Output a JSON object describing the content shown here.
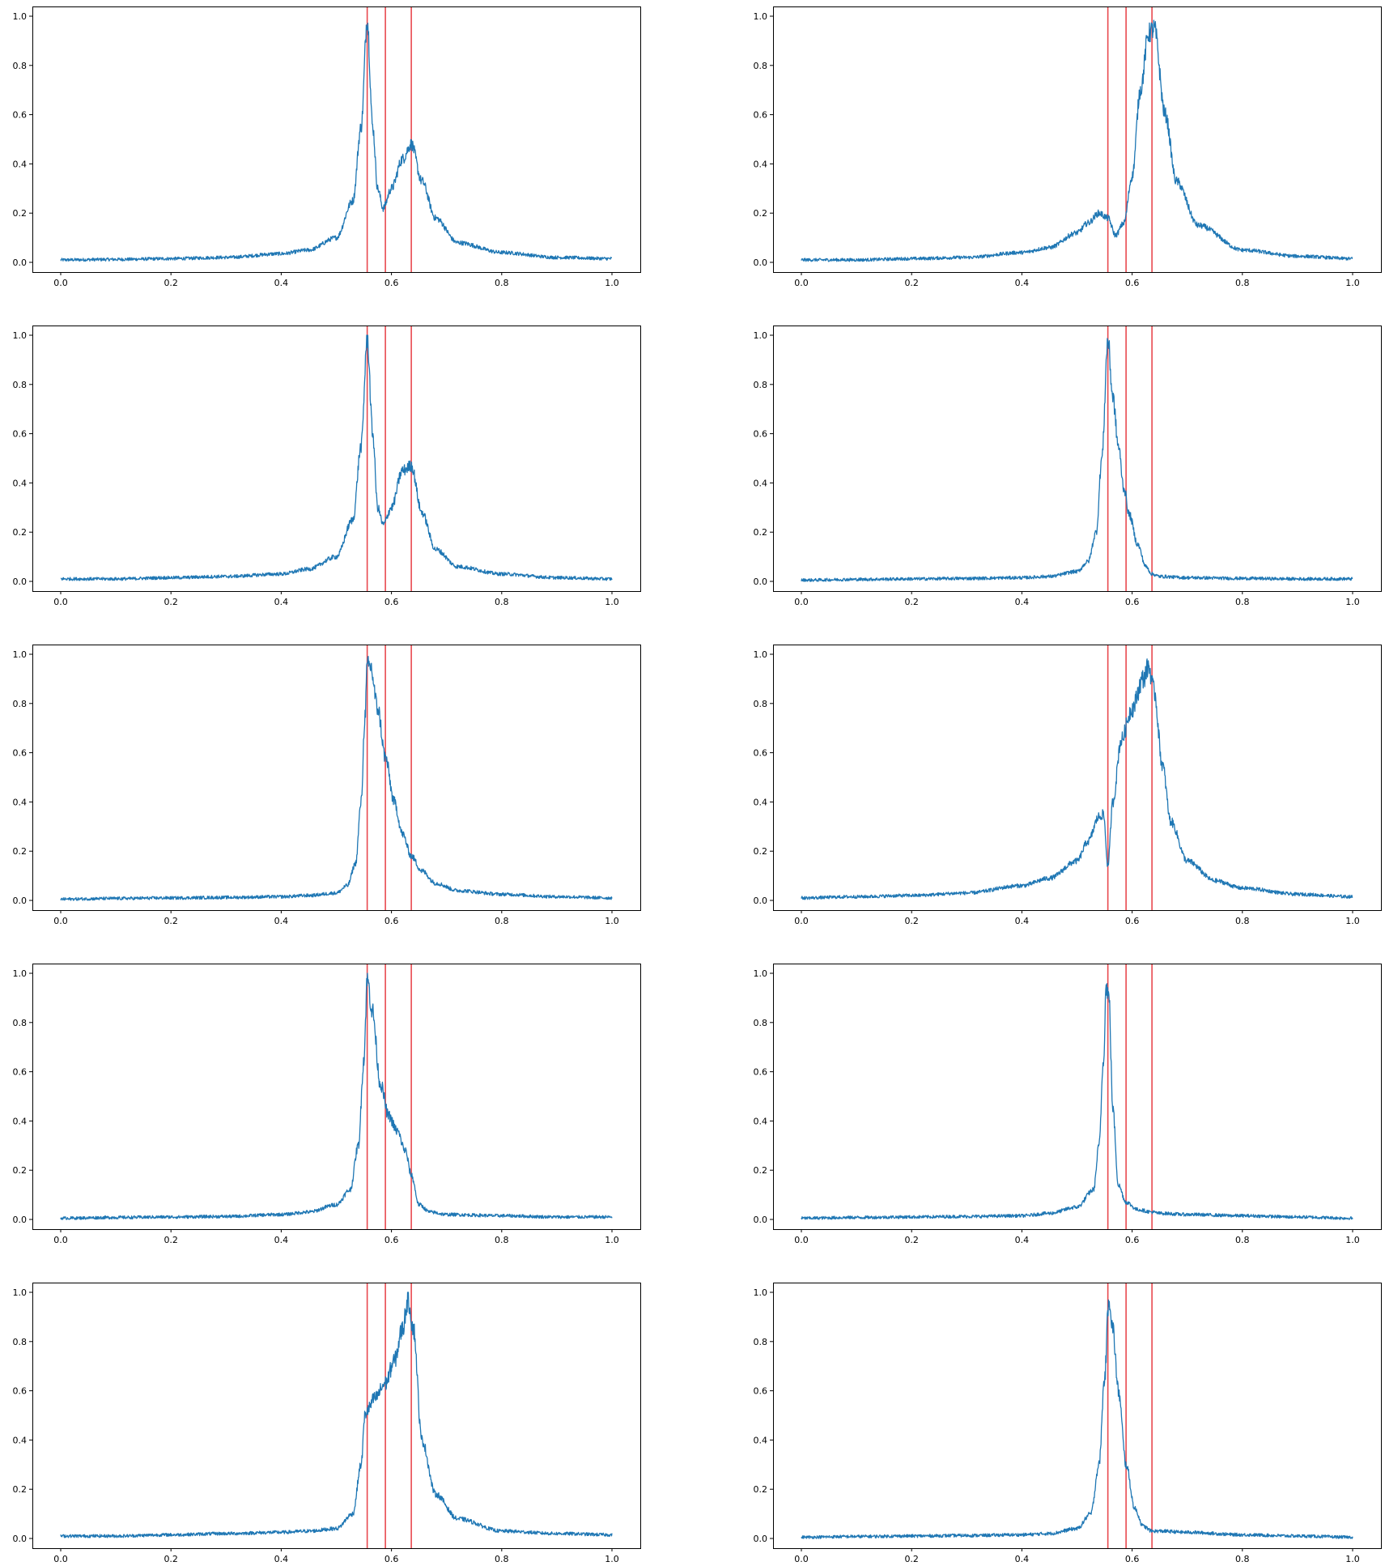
{
  "chart_data": [
    {
      "type": "line",
      "xlim": [
        0.0,
        1.0
      ],
      "ylim": [
        0.0,
        1.0
      ],
      "x_ticks": [
        "0.0",
        "0.2",
        "0.4",
        "0.6",
        "0.8",
        "1.0"
      ],
      "y_ticks": [
        "0.0",
        "0.2",
        "0.4",
        "0.6",
        "0.8",
        "1.0"
      ],
      "vertical_lines_x": [
        0.556,
        0.589,
        0.636
      ],
      "series": [
        {
          "x": [
            0.0,
            0.1,
            0.2,
            0.3,
            0.4,
            0.45,
            0.5,
            0.53,
            0.545,
            0.556,
            0.566,
            0.575,
            0.585,
            0.6,
            0.62,
            0.636,
            0.655,
            0.68,
            0.72,
            0.8,
            0.9,
            1.0
          ],
          "y": [
            0.01,
            0.012,
            0.015,
            0.02,
            0.035,
            0.05,
            0.1,
            0.25,
            0.55,
            0.99,
            0.55,
            0.3,
            0.22,
            0.3,
            0.42,
            0.48,
            0.33,
            0.18,
            0.08,
            0.04,
            0.02,
            0.015
          ]
        }
      ]
    },
    {
      "type": "line",
      "xlim": [
        0.0,
        1.0
      ],
      "ylim": [
        0.0,
        1.0
      ],
      "x_ticks": [
        "0.0",
        "0.2",
        "0.4",
        "0.6",
        "0.8",
        "1.0"
      ],
      "y_ticks": [
        "0.0",
        "0.2",
        "0.4",
        "0.6",
        "0.8",
        "1.0"
      ],
      "vertical_lines_x": [
        0.556,
        0.589,
        0.636
      ],
      "series": [
        {
          "x": [
            0.0,
            0.1,
            0.2,
            0.3,
            0.4,
            0.45,
            0.5,
            0.52,
            0.54,
            0.556,
            0.57,
            0.585,
            0.6,
            0.615,
            0.63,
            0.64,
            0.66,
            0.68,
            0.72,
            0.8,
            0.9,
            1.0
          ],
          "y": [
            0.01,
            0.01,
            0.015,
            0.02,
            0.04,
            0.06,
            0.12,
            0.16,
            0.2,
            0.18,
            0.11,
            0.16,
            0.35,
            0.7,
            0.93,
            0.95,
            0.6,
            0.33,
            0.15,
            0.05,
            0.025,
            0.015
          ]
        }
      ]
    },
    {
      "type": "line",
      "xlim": [
        0.0,
        1.0
      ],
      "ylim": [
        0.0,
        1.0
      ],
      "x_ticks": [
        "0.0",
        "0.2",
        "0.4",
        "0.6",
        "0.8",
        "1.0"
      ],
      "y_ticks": [
        "0.0",
        "0.2",
        "0.4",
        "0.6",
        "0.8",
        "1.0"
      ],
      "vertical_lines_x": [
        0.556,
        0.589,
        0.636
      ],
      "series": [
        {
          "x": [
            0.0,
            0.1,
            0.2,
            0.3,
            0.4,
            0.45,
            0.5,
            0.53,
            0.545,
            0.556,
            0.566,
            0.575,
            0.585,
            0.6,
            0.62,
            0.636,
            0.655,
            0.68,
            0.72,
            0.8,
            0.9,
            1.0
          ],
          "y": [
            0.01,
            0.01,
            0.015,
            0.02,
            0.03,
            0.05,
            0.1,
            0.25,
            0.55,
            0.99,
            0.6,
            0.3,
            0.23,
            0.3,
            0.45,
            0.47,
            0.28,
            0.13,
            0.06,
            0.03,
            0.015,
            0.01
          ]
        }
      ]
    },
    {
      "type": "line",
      "xlim": [
        0.0,
        1.0
      ],
      "ylim": [
        0.0,
        1.0
      ],
      "x_ticks": [
        "0.0",
        "0.2",
        "0.4",
        "0.6",
        "0.8",
        "1.0"
      ],
      "y_ticks": [
        "0.0",
        "0.2",
        "0.4",
        "0.6",
        "0.8",
        "1.0"
      ],
      "vertical_lines_x": [
        0.556,
        0.589,
        0.636
      ],
      "series": [
        {
          "x": [
            0.0,
            0.1,
            0.2,
            0.3,
            0.4,
            0.45,
            0.5,
            0.52,
            0.535,
            0.545,
            0.556,
            0.565,
            0.575,
            0.585,
            0.595,
            0.61,
            0.625,
            0.636,
            0.65,
            0.7,
            0.8,
            0.9,
            1.0
          ],
          "y": [
            0.005,
            0.008,
            0.01,
            0.012,
            0.015,
            0.02,
            0.04,
            0.08,
            0.2,
            0.5,
            0.98,
            0.75,
            0.55,
            0.38,
            0.27,
            0.15,
            0.06,
            0.03,
            0.02,
            0.015,
            0.012,
            0.01,
            0.01
          ]
        }
      ]
    },
    {
      "type": "line",
      "xlim": [
        0.0,
        1.0
      ],
      "ylim": [
        0.0,
        1.0
      ],
      "x_ticks": [
        "0.0",
        "0.2",
        "0.4",
        "0.6",
        "0.8",
        "1.0"
      ],
      "y_ticks": [
        "0.0",
        "0.2",
        "0.4",
        "0.6",
        "0.8",
        "1.0"
      ],
      "vertical_lines_x": [
        0.556,
        0.589,
        0.636
      ],
      "series": [
        {
          "x": [
            0.0,
            0.1,
            0.2,
            0.3,
            0.4,
            0.45,
            0.5,
            0.52,
            0.535,
            0.545,
            0.552,
            0.556,
            0.562,
            0.575,
            0.589,
            0.605,
            0.62,
            0.636,
            0.655,
            0.68,
            0.72,
            0.8,
            0.9,
            1.0
          ],
          "y": [
            0.005,
            0.008,
            0.01,
            0.012,
            0.015,
            0.02,
            0.03,
            0.06,
            0.15,
            0.4,
            0.75,
            0.95,
            0.95,
            0.78,
            0.58,
            0.4,
            0.27,
            0.18,
            0.12,
            0.07,
            0.04,
            0.025,
            0.015,
            0.01
          ]
        }
      ]
    },
    {
      "type": "line",
      "xlim": [
        0.0,
        1.0
      ],
      "ylim": [
        0.0,
        1.0
      ],
      "x_ticks": [
        "0.0",
        "0.2",
        "0.4",
        "0.6",
        "0.8",
        "1.0"
      ],
      "y_ticks": [
        "0.0",
        "0.2",
        "0.4",
        "0.6",
        "0.8",
        "1.0"
      ],
      "vertical_lines_x": [
        0.556,
        0.589,
        0.636
      ],
      "series": [
        {
          "x": [
            0.0,
            0.1,
            0.2,
            0.3,
            0.4,
            0.45,
            0.5,
            0.52,
            0.54,
            0.548,
            0.556,
            0.565,
            0.58,
            0.6,
            0.62,
            0.63,
            0.64,
            0.655,
            0.67,
            0.7,
            0.75,
            0.8,
            0.9,
            1.0
          ],
          "y": [
            0.01,
            0.015,
            0.02,
            0.03,
            0.06,
            0.09,
            0.16,
            0.24,
            0.34,
            0.35,
            0.14,
            0.4,
            0.65,
            0.78,
            0.9,
            0.95,
            0.85,
            0.55,
            0.32,
            0.16,
            0.08,
            0.05,
            0.025,
            0.015
          ]
        }
      ]
    },
    {
      "type": "line",
      "xlim": [
        0.0,
        1.0
      ],
      "ylim": [
        0.0,
        1.0
      ],
      "x_ticks": [
        "0.0",
        "0.2",
        "0.4",
        "0.6",
        "0.8",
        "1.0"
      ],
      "y_ticks": [
        "0.0",
        "0.2",
        "0.4",
        "0.6",
        "0.8",
        "1.0"
      ],
      "vertical_lines_x": [
        0.556,
        0.589,
        0.636
      ],
      "series": [
        {
          "x": [
            0.0,
            0.1,
            0.2,
            0.3,
            0.4,
            0.45,
            0.5,
            0.525,
            0.54,
            0.55,
            0.556,
            0.565,
            0.58,
            0.595,
            0.61,
            0.625,
            0.636,
            0.65,
            0.67,
            0.7,
            0.8,
            0.9,
            1.0
          ],
          "y": [
            0.005,
            0.008,
            0.01,
            0.012,
            0.02,
            0.03,
            0.06,
            0.12,
            0.3,
            0.65,
            0.98,
            0.85,
            0.55,
            0.42,
            0.36,
            0.28,
            0.18,
            0.06,
            0.03,
            0.02,
            0.015,
            0.01,
            0.01
          ]
        }
      ]
    },
    {
      "type": "line",
      "xlim": [
        0.0,
        1.0
      ],
      "ylim": [
        0.0,
        1.0
      ],
      "x_ticks": [
        "0.0",
        "0.2",
        "0.4",
        "0.6",
        "0.8",
        "1.0"
      ],
      "y_ticks": [
        "0.0",
        "0.2",
        "0.4",
        "0.6",
        "0.8",
        "1.0"
      ],
      "vertical_lines_x": [
        0.556,
        0.589,
        0.636
      ],
      "series": [
        {
          "x": [
            0.0,
            0.1,
            0.2,
            0.3,
            0.4,
            0.45,
            0.5,
            0.53,
            0.54,
            0.548,
            0.553,
            0.558,
            0.565,
            0.575,
            0.589,
            0.61,
            0.636,
            0.65,
            0.7,
            0.8,
            0.9,
            1.0
          ],
          "y": [
            0.005,
            0.008,
            0.01,
            0.012,
            0.015,
            0.025,
            0.05,
            0.12,
            0.3,
            0.65,
            0.95,
            0.9,
            0.45,
            0.14,
            0.07,
            0.04,
            0.03,
            0.025,
            0.02,
            0.015,
            0.01,
            0.005
          ]
        }
      ]
    },
    {
      "type": "line",
      "xlim": [
        0.0,
        1.0
      ],
      "ylim": [
        0.0,
        1.0
      ],
      "x_ticks": [
        "0.0",
        "0.2",
        "0.4",
        "0.6",
        "0.8",
        "1.0"
      ],
      "y_ticks": [
        "0.0",
        "0.2",
        "0.4",
        "0.6",
        "0.8",
        "1.0"
      ],
      "vertical_lines_x": [
        0.556,
        0.589,
        0.636
      ],
      "series": [
        {
          "x": [
            0.0,
            0.1,
            0.2,
            0.3,
            0.4,
            0.45,
            0.5,
            0.53,
            0.545,
            0.552,
            0.556,
            0.57,
            0.589,
            0.605,
            0.62,
            0.63,
            0.64,
            0.655,
            0.68,
            0.72,
            0.8,
            0.9,
            1.0
          ],
          "y": [
            0.01,
            0.01,
            0.015,
            0.02,
            0.025,
            0.03,
            0.04,
            0.1,
            0.3,
            0.5,
            0.52,
            0.57,
            0.63,
            0.72,
            0.85,
            0.97,
            0.85,
            0.4,
            0.18,
            0.08,
            0.03,
            0.02,
            0.015
          ]
        }
      ]
    },
    {
      "type": "line",
      "xlim": [
        0.0,
        1.0
      ],
      "ylim": [
        0.0,
        1.0
      ],
      "x_ticks": [
        "0.0",
        "0.2",
        "0.4",
        "0.6",
        "0.8",
        "1.0"
      ],
      "y_ticks": [
        "0.0",
        "0.2",
        "0.4",
        "0.6",
        "0.8",
        "1.0"
      ],
      "vertical_lines_x": [
        0.556,
        0.589,
        0.636
      ],
      "series": [
        {
          "x": [
            0.0,
            0.1,
            0.2,
            0.3,
            0.4,
            0.45,
            0.5,
            0.525,
            0.54,
            0.55,
            0.558,
            0.565,
            0.575,
            0.589,
            0.605,
            0.62,
            0.636,
            0.65,
            0.7,
            0.8,
            0.9,
            1.0
          ],
          "y": [
            0.005,
            0.008,
            0.01,
            0.012,
            0.015,
            0.02,
            0.04,
            0.1,
            0.3,
            0.65,
            0.98,
            0.85,
            0.6,
            0.3,
            0.12,
            0.05,
            0.03,
            0.03,
            0.025,
            0.015,
            0.01,
            0.005
          ]
        }
      ]
    }
  ],
  "colors": {
    "line": "#1f77b4",
    "vline": "#e8494f",
    "axes": "#000000"
  }
}
